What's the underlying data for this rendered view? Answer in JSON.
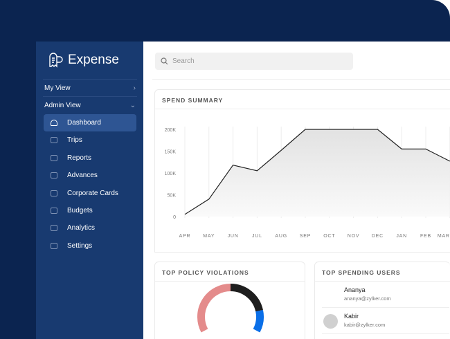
{
  "app": {
    "name": "Expense"
  },
  "sidebar": {
    "sections": [
      {
        "label": "My View",
        "state": "collapsed"
      },
      {
        "label": "Admin View",
        "state": "expanded"
      }
    ],
    "items": [
      {
        "label": "Dashboard",
        "icon": "gauge-icon",
        "active": true
      },
      {
        "label": "Trips",
        "icon": "briefcase-icon"
      },
      {
        "label": "Reports",
        "icon": "folder-icon"
      },
      {
        "label": "Advances",
        "icon": "wallet-icon"
      },
      {
        "label": "Corporate Cards",
        "icon": "card-icon"
      },
      {
        "label": "Budgets",
        "icon": "budget-icon"
      },
      {
        "label": "Analytics",
        "icon": "chart-icon"
      },
      {
        "label": "Settings",
        "icon": "gear-icon"
      }
    ]
  },
  "search": {
    "placeholder": "Search"
  },
  "spend_summary": {
    "title": "SPEND SUMMARY"
  },
  "chart_data": {
    "type": "area",
    "categories": [
      "APR",
      "MAY",
      "JUN",
      "JUL",
      "AUG",
      "SEP",
      "OCT",
      "NOV",
      "DEC",
      "JAN",
      "FEB",
      "MAR"
    ],
    "values": [
      5000,
      40000,
      118000,
      105000,
      152000,
      200000,
      200000,
      200000,
      200000,
      155000,
      155000,
      127000
    ],
    "yticks": [
      "0",
      "50K",
      "100K",
      "150K",
      "200K"
    ],
    "ylim": [
      0,
      200000
    ],
    "grid": "vertical",
    "line_color": "#222222"
  },
  "violations": {
    "title": "TOP POLICY VIOLATIONS",
    "colors": [
      "#1e1e1e",
      "#0a6fe8",
      "#e48b8b"
    ]
  },
  "spending_users": {
    "title": "TOP SPENDING USERS",
    "users": [
      {
        "name": "Ananya",
        "email": "ananya@zylker.com"
      },
      {
        "name": "Kabir",
        "email": "kabir@zylker.com"
      }
    ]
  }
}
